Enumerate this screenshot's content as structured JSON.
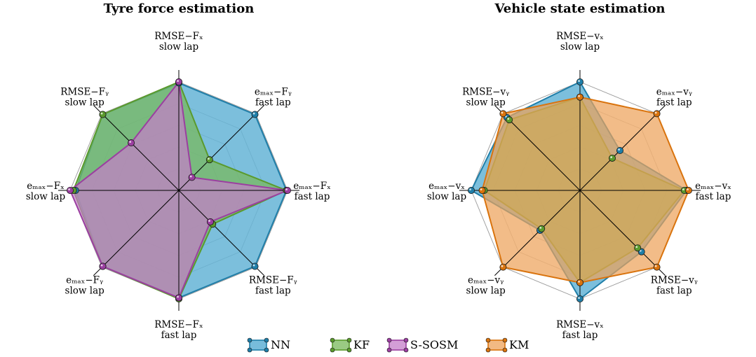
{
  "legend": [
    {
      "name": "NN",
      "color": "#1f7ea8",
      "fill": "#4aa6cf"
    },
    {
      "name": "KF",
      "color": "#5a9a2c",
      "fill": "#78b85a"
    },
    {
      "name": "S-SOSM",
      "color": "#9b3fa0",
      "fill": "#c47ec8"
    },
    {
      "name": "KM",
      "color": "#d9730d",
      "fill": "#eda25a"
    }
  ],
  "chart_data": [
    {
      "type": "radar",
      "title": "Tyre force estimation",
      "axes": [
        {
          "metric": "RMSE−Fₓ",
          "lap": "slow lap"
        },
        {
          "metric": "eₘₐₓ−Fᵧ",
          "lap": "fast lap"
        },
        {
          "metric": "eₘₐₓ−Fₓ",
          "lap": "fast lap"
        },
        {
          "metric": "RMSE−Fᵧ",
          "lap": "fast lap"
        },
        {
          "metric": "RMSE−Fₓ",
          "lap": "fast lap"
        },
        {
          "metric": "eₘₐₓ−Fᵧ",
          "lap": "slow lap"
        },
        {
          "metric": "eₘₐₓ−Fₓ",
          "lap": "slow lap"
        },
        {
          "metric": "RMSE−Fᵧ",
          "lap": "slow lap"
        }
      ],
      "rmax": 1.0,
      "rings": 5,
      "series": [
        {
          "name": "NN",
          "values": [
            0.99,
            0.99,
            0.99,
            0.99,
            0.99,
            0.99,
            0.95,
            0.99
          ]
        },
        {
          "name": "KF",
          "values": [
            1.0,
            0.4,
            0.99,
            0.44,
            1.0,
            0.99,
            0.97,
            0.99
          ]
        },
        {
          "name": "S-SOSM",
          "values": [
            1.0,
            0.17,
            1.0,
            0.41,
            0.99,
            0.99,
            1.0,
            0.62
          ]
        }
      ]
    },
    {
      "type": "radar",
      "title": "Vehicle state estimation",
      "axes": [
        {
          "metric": "RMSE−vₓ",
          "lap": "slow lap"
        },
        {
          "metric": "eₘₐₓ−vᵧ",
          "lap": "fast lap"
        },
        {
          "metric": "eₘₐₓ−vₓ",
          "lap": "fast lap"
        },
        {
          "metric": "RMSE−vᵧ",
          "lap": "fast lap"
        },
        {
          "metric": "RMSE−vₓ",
          "lap": "fast lap"
        },
        {
          "metric": "eₘₐₓ−vᵧ",
          "lap": "slow lap"
        },
        {
          "metric": "eₘₐₓ−vₓ",
          "lap": "slow lap"
        },
        {
          "metric": "RMSE−vᵧ",
          "lap": "slow lap"
        }
      ],
      "rmax": 1.0,
      "rings": 5,
      "series": [
        {
          "name": "NN",
          "values": [
            1.0,
            0.52,
            0.98,
            0.8,
            1.0,
            0.52,
            1.0,
            0.95
          ]
        },
        {
          "name": "KF",
          "values": [
            0.86,
            0.42,
            0.96,
            0.75,
            0.85,
            0.5,
            0.88,
            0.92
          ]
        },
        {
          "name": "KM",
          "values": [
            0.86,
            1.0,
            1.0,
            1.0,
            0.85,
            1.0,
            0.9,
            1.0
          ]
        }
      ]
    }
  ]
}
